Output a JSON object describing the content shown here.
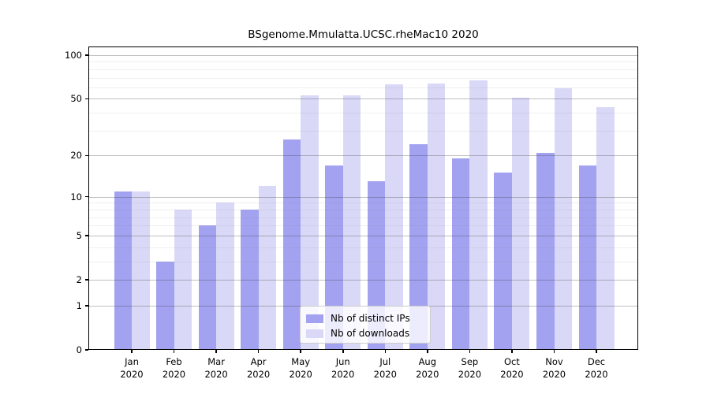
{
  "chart_data": {
    "type": "bar",
    "title": "BSgenome.Mmulatta.UCSC.rheMac10 2020",
    "categories": [
      "Jan",
      "Feb",
      "Mar",
      "Apr",
      "May",
      "Jun",
      "Jul",
      "Aug",
      "Sep",
      "Oct",
      "Nov",
      "Dec"
    ],
    "x_year": "2020",
    "series": [
      {
        "name": "Nb of distinct IPs",
        "color": "#a2a2f0",
        "values": [
          11,
          3,
          6,
          8,
          26,
          17,
          13,
          24,
          19,
          15,
          21,
          17
        ]
      },
      {
        "name": "Nb of downloads",
        "color": "#d9d9f7",
        "values": [
          11,
          8,
          9,
          12,
          53,
          53,
          63,
          64,
          67,
          51,
          59,
          44
        ]
      }
    ],
    "y_ticks": [
      0,
      1,
      2,
      5,
      10,
      20,
      50,
      100
    ],
    "y_minor_gridlines": [
      3,
      4,
      6,
      7,
      8,
      9,
      30,
      40,
      60,
      70,
      80,
      90
    ],
    "scale": "log1p",
    "ylim": [
      0,
      115
    ],
    "grid": "on",
    "legend_position": "bottom-center",
    "xlabel": "",
    "ylabel": ""
  }
}
